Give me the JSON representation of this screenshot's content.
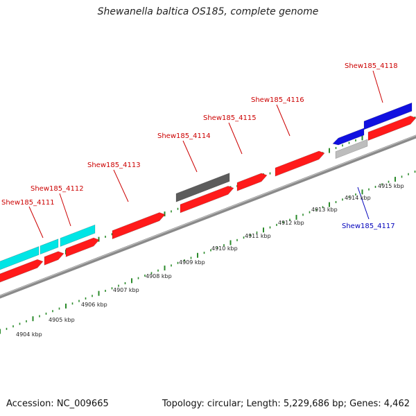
{
  "title": "Shewanella baltica OS185, complete genome",
  "footer": {
    "accession": "Accession: NC_009665",
    "topology": "Topology: circular; Length: 5,229,686 bp; Genes: 4,462"
  },
  "colors": {
    "forward_cds": "#ff1a1a",
    "reverse_cds": "#1010e0",
    "rna_forward": "#00e5e5",
    "pseudo_forward": "#5c5c5c",
    "pseudo_reverse": "#bdbdbd",
    "backbone": "#8a8a8a",
    "ticks": "#2a8a2a",
    "label_forward": "#cc0000",
    "label_reverse": "#0000bb",
    "kbp_label": "#222222"
  },
  "scale": {
    "labels": [
      "4904 kbp",
      "4905 kbp",
      "4906 kbp",
      "4907 kbp",
      "4908 kbp",
      "4909 kbp",
      "4910 kbp",
      "4911 kbp",
      "4912 kbp",
      "4913 kbp",
      "4914 kbp",
      "4915 kbp"
    ]
  },
  "gene_labels": [
    {
      "id": "lbl-4111",
      "text": "Shew185_4111",
      "strand": "forward"
    },
    {
      "id": "lbl-4112",
      "text": "Shew185_4112",
      "strand": "forward"
    },
    {
      "id": "lbl-4113",
      "text": "Shew185_4113",
      "strand": "forward"
    },
    {
      "id": "lbl-4114",
      "text": "Shew185_4114",
      "strand": "forward"
    },
    {
      "id": "lbl-4115",
      "text": "Shew185_4115",
      "strand": "forward"
    },
    {
      "id": "lbl-4116",
      "text": "Shew185_4116",
      "strand": "forward"
    },
    {
      "id": "lbl-4117",
      "text": "Shew185_4117",
      "strand": "reverse"
    },
    {
      "id": "lbl-4118",
      "text": "Shew185_4118",
      "strand": "forward"
    }
  ]
}
